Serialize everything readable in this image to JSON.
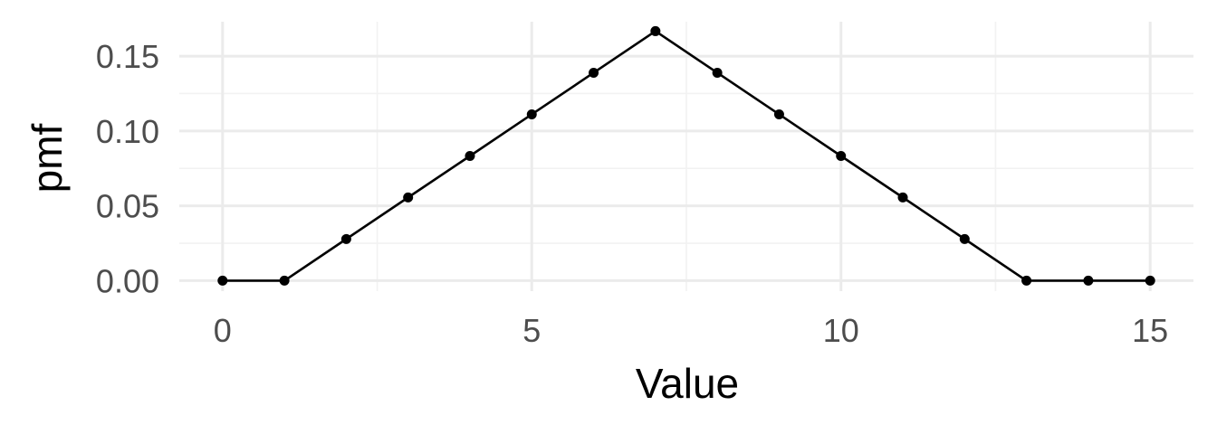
{
  "chart_data": {
    "type": "line",
    "title": "",
    "xlabel": "Value",
    "ylabel": "pmf",
    "xlim": [
      -0.7,
      15.7
    ],
    "ylim": [
      -0.007,
      0.173
    ],
    "x_ticks": [
      0,
      5,
      10,
      15
    ],
    "x_tick_labels": [
      "0",
      "5",
      "10",
      "15"
    ],
    "x_minor_ticks": [
      2.5,
      7.5,
      12.5
    ],
    "y_ticks": [
      0,
      0.05,
      0.1,
      0.15
    ],
    "y_tick_labels": [
      "0.00",
      "0.05",
      "0.10",
      "0.15"
    ],
    "y_minor_ticks": [
      0.025,
      0.075,
      0.125
    ],
    "grid": true,
    "legend": "none",
    "line_color": "#000000",
    "series": [
      {
        "x": [
          0,
          1,
          2,
          3,
          4,
          5,
          6,
          7,
          8,
          9,
          10,
          11,
          12,
          13,
          14,
          15
        ],
        "values": [
          0,
          0,
          0.0278,
          0.0556,
          0.0833,
          0.1111,
          0.1389,
          0.1667,
          0.1389,
          0.1111,
          0.0833,
          0.0556,
          0.0278,
          0,
          0,
          0
        ]
      }
    ]
  }
}
